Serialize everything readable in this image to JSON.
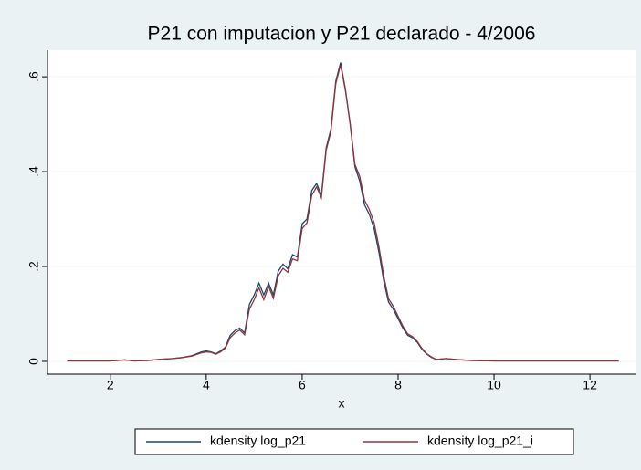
{
  "chart_data": {
    "type": "line",
    "title": "P21 con imputacion y P21 declarado - 4/2006",
    "x_label": "x",
    "x": [
      1.1,
      1.5,
      2,
      2.3,
      2.5,
      2.8,
      3,
      3.3,
      3.5,
      3.7,
      3.9,
      4.0,
      4.1,
      4.2,
      4.3,
      4.4,
      4.5,
      4.6,
      4.7,
      4.8,
      4.9,
      5.0,
      5.1,
      5.2,
      5.3,
      5.4,
      5.5,
      5.6,
      5.7,
      5.8,
      5.9,
      6.0,
      6.1,
      6.2,
      6.3,
      6.4,
      6.5,
      6.6,
      6.7,
      6.8,
      6.9,
      7.0,
      7.1,
      7.2,
      7.3,
      7.4,
      7.5,
      7.6,
      7.7,
      7.8,
      7.9,
      8.0,
      8.1,
      8.2,
      8.3,
      8.4,
      8.5,
      8.6,
      8.7,
      8.8,
      9.0,
      9.2,
      9.5,
      10,
      11,
      12,
      12.6
    ],
    "series": [
      {
        "name": "kdensity log_p21",
        "color": "#1a476f",
        "values": [
          0.001,
          0.001,
          0.001,
          0.003,
          0.001,
          0.002,
          0.004,
          0.006,
          0.008,
          0.012,
          0.02,
          0.022,
          0.02,
          0.016,
          0.022,
          0.03,
          0.055,
          0.065,
          0.07,
          0.06,
          0.12,
          0.14,
          0.165,
          0.14,
          0.165,
          0.14,
          0.19,
          0.205,
          0.195,
          0.225,
          0.22,
          0.29,
          0.3,
          0.36,
          0.375,
          0.35,
          0.45,
          0.49,
          0.59,
          0.63,
          0.575,
          0.5,
          0.41,
          0.38,
          0.33,
          0.31,
          0.28,
          0.23,
          0.17,
          0.125,
          0.11,
          0.09,
          0.07,
          0.055,
          0.05,
          0.04,
          0.025,
          0.015,
          0.008,
          0.004,
          0.006,
          0.004,
          0.002,
          0.001,
          0.001,
          0.001,
          0.001
        ]
      },
      {
        "name": "kdensity log_p21_i",
        "color": "#90353b",
        "values": [
          0.001,
          0.001,
          0.001,
          0.003,
          0.001,
          0.002,
          0.004,
          0.006,
          0.008,
          0.011,
          0.018,
          0.02,
          0.019,
          0.015,
          0.02,
          0.028,
          0.05,
          0.06,
          0.066,
          0.056,
          0.11,
          0.13,
          0.155,
          0.13,
          0.158,
          0.133,
          0.18,
          0.196,
          0.188,
          0.216,
          0.212,
          0.28,
          0.292,
          0.35,
          0.368,
          0.345,
          0.445,
          0.485,
          0.585,
          0.625,
          0.572,
          0.502,
          0.415,
          0.39,
          0.34,
          0.32,
          0.292,
          0.242,
          0.18,
          0.132,
          0.116,
          0.095,
          0.074,
          0.058,
          0.052,
          0.042,
          0.027,
          0.016,
          0.009,
          0.004,
          0.006,
          0.004,
          0.002,
          0.001,
          0.001,
          0.001,
          0.001
        ]
      }
    ],
    "xlim": [
      0.69,
      12.95
    ],
    "xticks": [
      2,
      4,
      6,
      8,
      10,
      12
    ],
    "ylim": [
      -0.027,
      0.656
    ],
    "yticks": [
      0,
      {
        "value": 0.2,
        "label": ".2"
      },
      {
        "value": 0.4,
        "label": ".4"
      },
      {
        "value": 0.6,
        "label": ".6"
      }
    ],
    "grid": true,
    "legend": "bottom"
  }
}
